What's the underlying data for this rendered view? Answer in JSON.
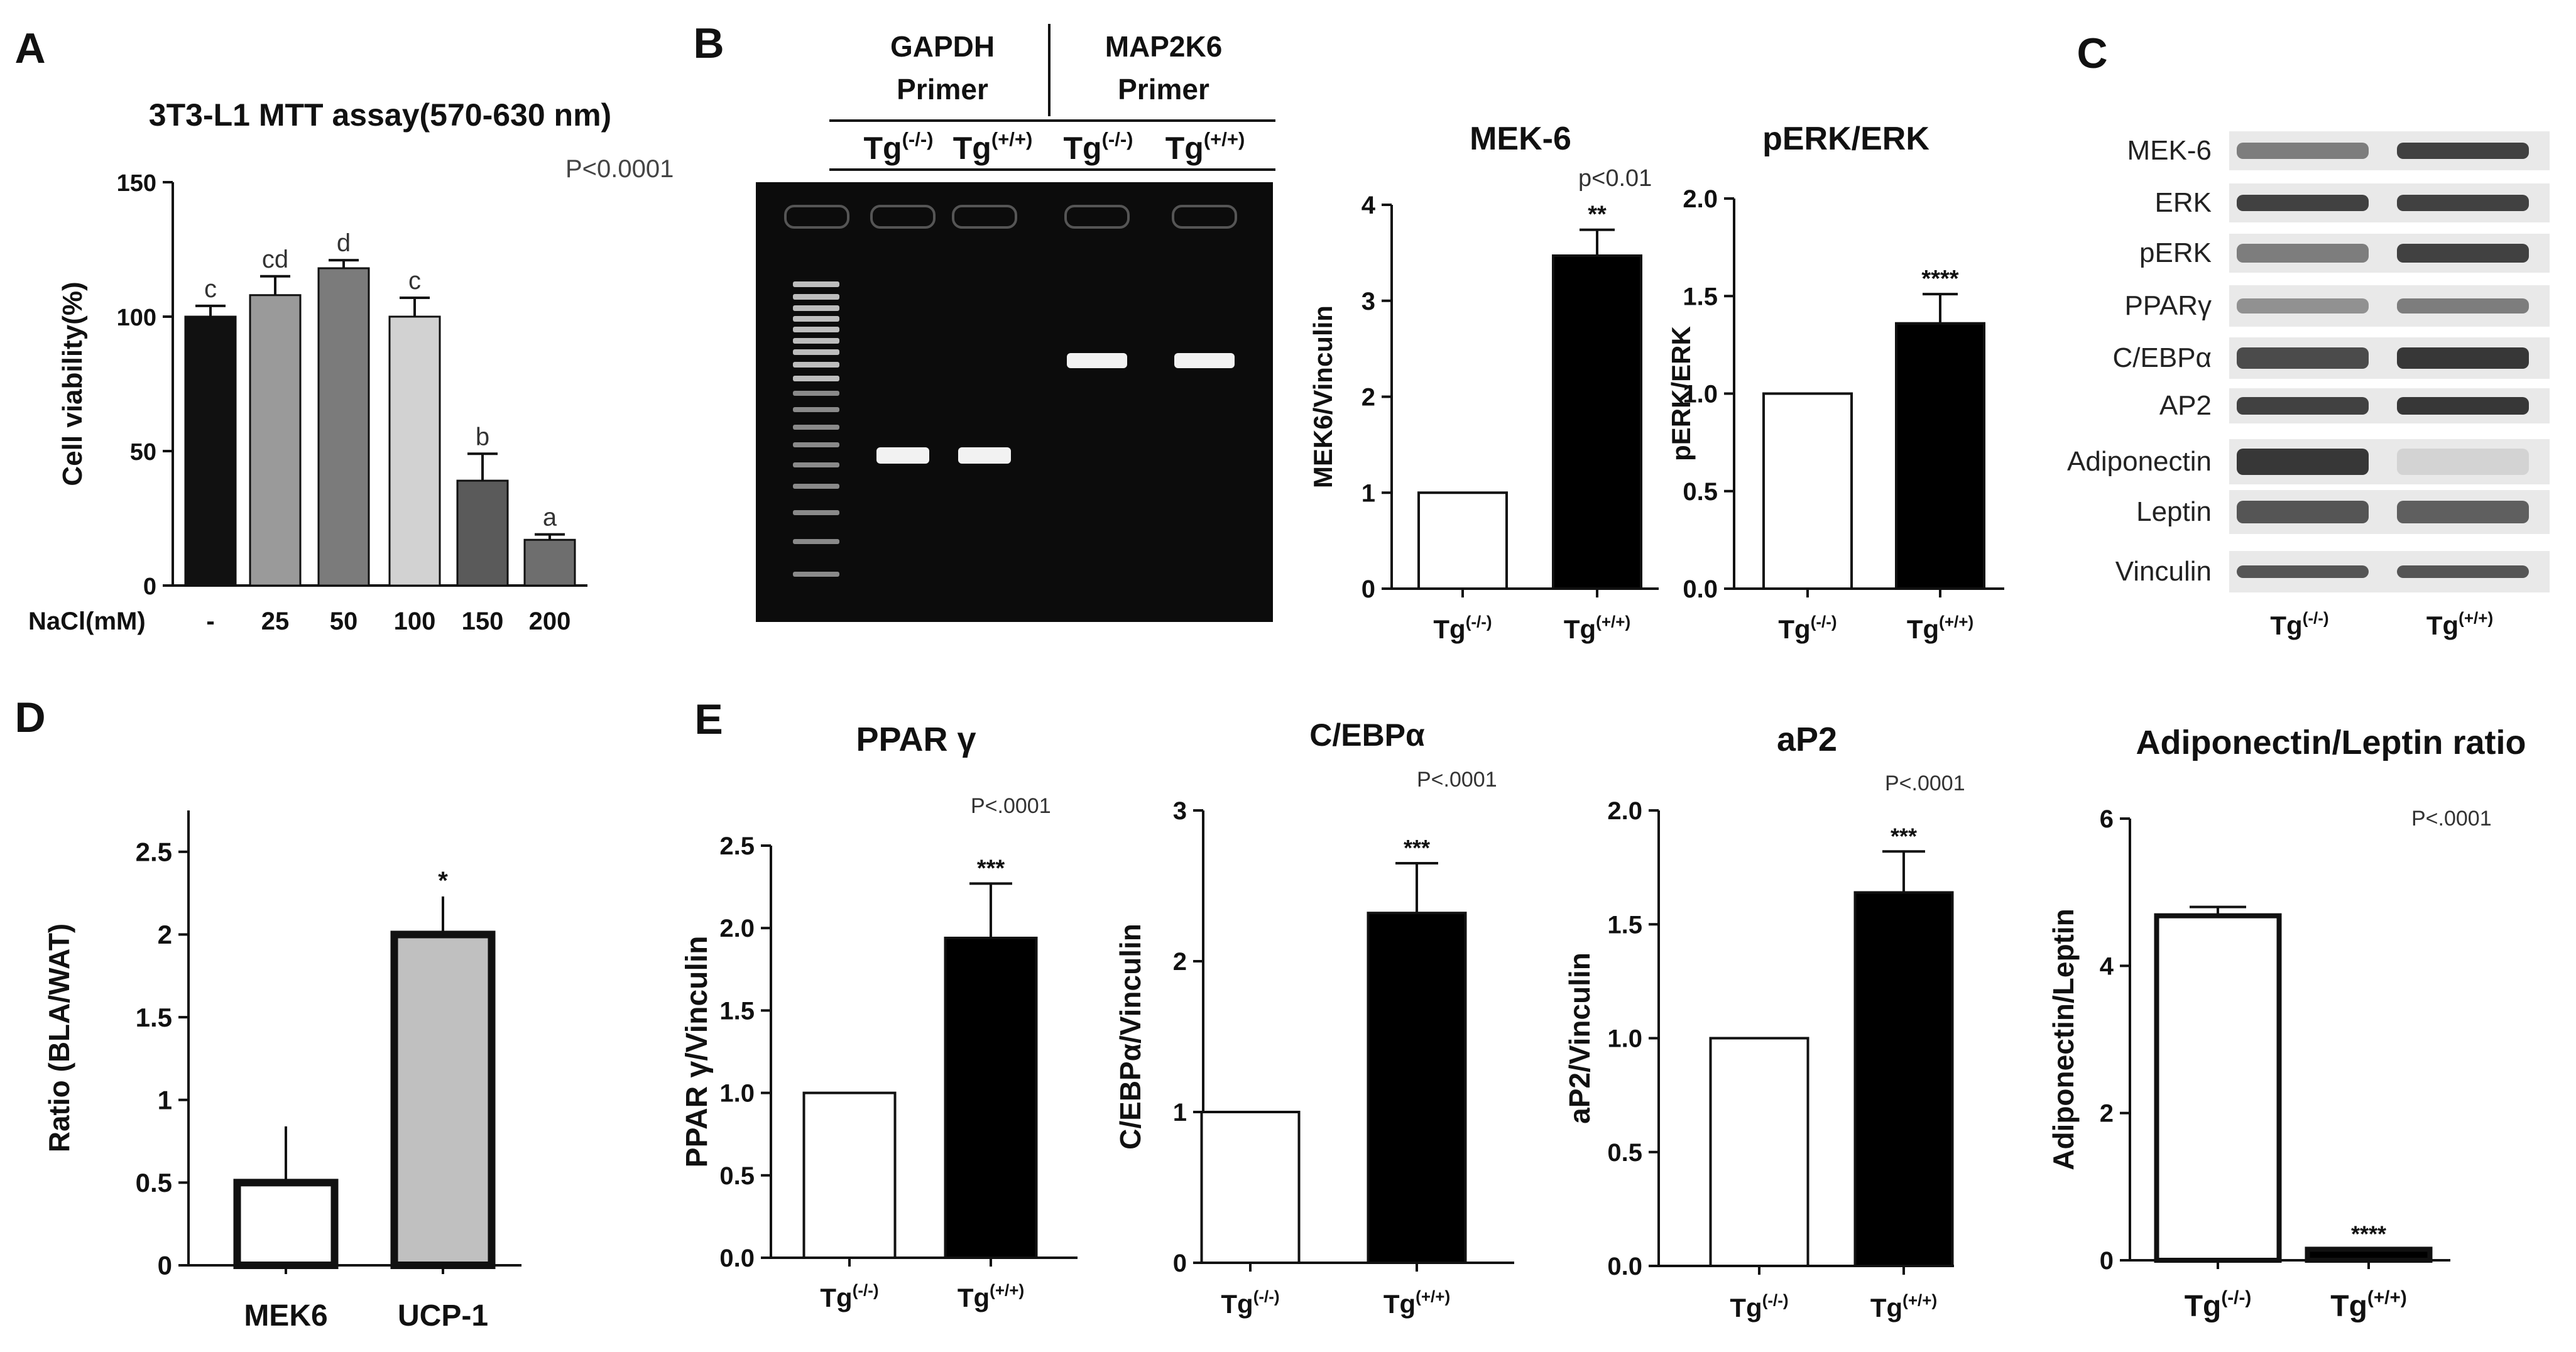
{
  "panel_letters": [
    "A",
    "B",
    "C",
    "D",
    "E"
  ],
  "chart_data": [
    {
      "id": "A",
      "type": "bar",
      "title": "3T3-L1 MTT assay(570-630 nm)",
      "annotation": "P<0.0001",
      "xlabel": "NaCl(mM)",
      "ylabel": "Cell viability(%)",
      "categories": [
        "-",
        "25",
        "50",
        "100",
        "150",
        "200"
      ],
      "values": [
        100,
        108,
        118,
        100,
        39,
        17
      ],
      "errors": [
        4,
        7,
        3,
        7,
        10,
        2
      ],
      "letters": [
        "c",
        "cd",
        "d",
        "c",
        "b",
        "a"
      ],
      "colors": [
        "#111111",
        "#9a9a9a",
        "#7b7b7b",
        "#d2d2d2",
        "#5a5a5a",
        "#6e6e6e"
      ],
      "ylim": [
        0,
        150
      ],
      "yticks": [
        "0",
        "50",
        "100",
        "150"
      ]
    },
    {
      "id": "B-MEK6",
      "type": "bar",
      "title": "MEK-6",
      "annotation": "p<0.01",
      "ylabel": "MEK6/Vinculin",
      "categories": [
        "Tg(-/-)",
        "Tg(+/+)"
      ],
      "values": [
        1.0,
        3.47
      ],
      "errors": [
        0,
        0.27
      ],
      "sig": [
        "",
        "**"
      ],
      "colors": [
        "#ffffff",
        "#000000"
      ],
      "ylim": [
        0,
        4
      ],
      "yticks": [
        "0",
        "1",
        "2",
        "3",
        "4"
      ]
    },
    {
      "id": "B-pERK",
      "type": "bar",
      "title": "pERK/ERK",
      "annotation": "",
      "ylabel": "pERK/ERK",
      "categories": [
        "Tg(-/-)",
        "Tg(+/+)"
      ],
      "values": [
        1.0,
        1.36
      ],
      "errors": [
        0,
        0.15
      ],
      "sig": [
        "",
        "****"
      ],
      "colors": [
        "#ffffff",
        "#000000"
      ],
      "ylim": [
        0,
        2
      ],
      "yticks": [
        "0.0",
        "0.5",
        "1.0",
        "1.5",
        "2.0"
      ]
    },
    {
      "id": "D",
      "type": "bar",
      "title": "",
      "annotation": "",
      "ylabel": "Ratio (BLA/WAT)",
      "categories": [
        "MEK6",
        "UCP-1"
      ],
      "values": [
        0.5,
        2.0
      ],
      "errors": [
        0.34,
        0.23
      ],
      "sig": [
        "",
        "*"
      ],
      "colors": [
        "#ffffff",
        "#c0c0c0"
      ],
      "ylim": [
        0,
        2.75
      ],
      "yticks": [
        "0",
        "0.5",
        "1",
        "1.5",
        "2",
        "2.5"
      ]
    },
    {
      "id": "E-PPAR",
      "type": "bar",
      "title": "PPAR γ",
      "annotation": "P<.0001",
      "ylabel": "PPAR γ/Vinculin",
      "categories": [
        "Tg(-/-)",
        "Tg(+/+)"
      ],
      "values": [
        1.0,
        1.94
      ],
      "errors": [
        0,
        0.33
      ],
      "sig": [
        "",
        "***"
      ],
      "colors": [
        "#ffffff",
        "#000000"
      ],
      "ylim": [
        0,
        2.5
      ],
      "yticks": [
        "0.0",
        "0.5",
        "1.0",
        "1.5",
        "2.0",
        "2.5"
      ]
    },
    {
      "id": "E-CEBP",
      "type": "bar",
      "title": "C/EBPα",
      "annotation": "P<.0001",
      "ylabel": "C/EBPα/Vinculin",
      "categories": [
        "Tg(-/-)",
        "Tg(+/+)"
      ],
      "values": [
        1.0,
        2.32
      ],
      "errors": [
        0,
        0.33
      ],
      "sig": [
        "",
        "***"
      ],
      "colors": [
        "#ffffff",
        "#000000"
      ],
      "ylim": [
        0,
        3
      ],
      "yticks": [
        "0",
        "1",
        "2",
        "3"
      ]
    },
    {
      "id": "E-aP2",
      "type": "bar",
      "title": "aP2",
      "annotation": "P<.0001",
      "ylabel": "aP2/Vinculin",
      "categories": [
        "Tg(-/-)",
        "Tg(+/+)"
      ],
      "values": [
        1.0,
        1.64
      ],
      "errors": [
        0,
        0.18
      ],
      "sig": [
        "",
        "***"
      ],
      "colors": [
        "#ffffff",
        "#000000"
      ],
      "ylim": [
        0,
        2
      ],
      "yticks": [
        "0.0",
        "0.5",
        "1.0",
        "1.5",
        "2.0"
      ]
    },
    {
      "id": "E-AdipoLeptin",
      "type": "bar",
      "title": "Adiponectin/Leptin ratio",
      "annotation": "P<.0001",
      "ylabel": "Adiponectin/Leptin",
      "categories": [
        "Tg(-/-)",
        "Tg(+/+)"
      ],
      "values": [
        4.68,
        0.15
      ],
      "errors": [
        0.12,
        0
      ],
      "sig": [
        "",
        "****"
      ],
      "colors": [
        "#ffffff",
        "#000000"
      ],
      "ylim": [
        0,
        6
      ],
      "yticks": [
        "0",
        "2",
        "4",
        "6"
      ]
    }
  ],
  "gel": {
    "group_labels": [
      "GAPDH Primer",
      "MAP2K6 Primer"
    ],
    "lane_labels": [
      "Tg(-/-)",
      "Tg(+/+)",
      "Tg(-/-)",
      "Tg(+/+)"
    ]
  },
  "western": {
    "proteins": [
      "MEK-6",
      "ERK",
      "pERK",
      "PPARγ",
      "C/EBPα",
      "AP2",
      "Adiponectin",
      "Leptin",
      "Vinculin"
    ],
    "lane_labels": [
      "Tg(-/-)",
      "Tg(+/+)"
    ]
  }
}
